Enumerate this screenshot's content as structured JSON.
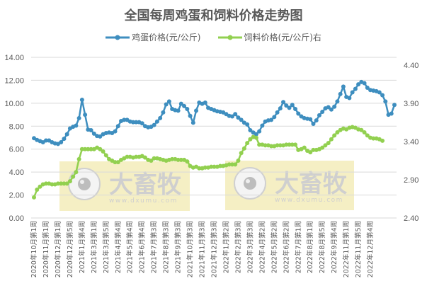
{
  "chart_data": {
    "type": "line",
    "title": "全国每周鸡蛋和饲料价格走势图",
    "xlabel": "",
    "ylabel": "",
    "legend_position": "top",
    "grid": true,
    "left_axis": {
      "ylim": [
        0,
        14
      ],
      "ticks": [
        "0.00",
        "2.00",
        "4.00",
        "6.00",
        "8.00",
        "10.00",
        "12.00",
        "14.00"
      ]
    },
    "right_axis": {
      "ylim": [
        2.4,
        4.4
      ],
      "ticks": [
        "2.40",
        "2.90",
        "3.40",
        "3.90",
        "4.40"
      ]
    },
    "x_tick_labels": [
      "2020年10月第1周",
      "2020年11月第1周",
      "2020年12月第1周",
      "2020年12月第5周",
      "2021年1月第4周",
      "2021年3月第1周",
      "2021年3月第5周",
      "2021年4月第4周",
      "2021年5月第4周",
      "2021年6月第4周",
      "2021年7月第3周",
      "2021年8月第3周",
      "2021年9月第3周",
      "2021年10月第3周",
      "2021年11月第3周",
      "2021年12月第3周",
      "2022年1月第2周",
      "2022年2月第3周",
      "2022年3月第3周",
      "2022年4月第2周",
      "2022年5月第2周",
      "2022年6月第2周",
      "2022年7月第1周",
      "2022年8月第1周",
      "2022年8月第5周",
      "2022年9月第4周",
      "2022年11月第1周",
      "2022年11月第5周",
      "2022年12月第4周"
    ],
    "series": [
      {
        "name": "鸡蛋价格(元/公斤)",
        "axis": "left",
        "color": "#3e8ebf",
        "values": [
          6.95,
          6.8,
          6.7,
          6.6,
          6.75,
          6.75,
          6.6,
          6.5,
          6.45,
          6.6,
          6.9,
          7.3,
          7.8,
          7.95,
          8.05,
          8.7,
          10.3,
          9.0,
          7.7,
          7.65,
          7.35,
          7.15,
          7.1,
          7.3,
          7.4,
          7.45,
          7.4,
          7.55,
          8.0,
          8.45,
          8.55,
          8.55,
          8.4,
          8.35,
          8.35,
          8.35,
          8.25,
          8.0,
          7.9,
          7.95,
          8.1,
          8.4,
          8.7,
          9.2,
          9.9,
          10.15,
          9.5,
          9.4,
          9.35,
          9.95,
          9.75,
          9.5,
          8.9,
          8.3,
          9.35,
          10.05,
          9.95,
          10.05,
          9.6,
          9.5,
          9.4,
          9.3,
          9.25,
          9.2,
          9.05,
          8.9,
          8.85,
          9.05,
          8.75,
          8.55,
          8.3,
          8.15,
          7.65,
          7.45,
          7.3,
          7.55,
          8.05,
          8.4,
          8.5,
          8.55,
          8.8,
          9.2,
          9.55,
          10.1,
          9.8,
          9.6,
          9.85,
          9.5,
          9.1,
          8.85,
          8.7,
          8.65,
          8.6,
          8.2,
          8.5,
          8.95,
          9.25,
          9.55,
          9.65,
          9.45,
          9.7,
          10.15,
          10.8,
          11.45,
          10.55,
          10.45,
          10.95,
          11.25,
          11.65,
          11.85,
          11.75,
          11.35,
          11.15,
          11.1,
          11.05,
          10.95,
          10.7,
          10.15,
          9.0,
          9.1,
          9.85
        ]
      },
      {
        "name": "饲料价格(元/公斤)右",
        "axis": "right",
        "color": "#92d050",
        "values": [
          2.67,
          2.77,
          2.81,
          2.84,
          2.85,
          2.85,
          2.84,
          2.84,
          2.85,
          2.85,
          2.85,
          2.85,
          2.88,
          2.94,
          3.0,
          3.17,
          3.3,
          3.3,
          3.3,
          3.3,
          3.3,
          3.32,
          3.3,
          3.27,
          3.22,
          3.17,
          3.15,
          3.13,
          3.13,
          3.16,
          3.18,
          3.2,
          3.2,
          3.19,
          3.2,
          3.2,
          3.21,
          3.19,
          3.16,
          3.15,
          3.18,
          3.18,
          3.17,
          3.16,
          3.15,
          3.16,
          3.17,
          3.17,
          3.16,
          3.16,
          3.16,
          3.14,
          3.08,
          3.06,
          3.07,
          3.05,
          3.05,
          3.06,
          3.06,
          3.07,
          3.07,
          3.07,
          3.08,
          3.08,
          3.09,
          3.1,
          3.1,
          3.1,
          3.15,
          3.25,
          3.31,
          3.38,
          3.43,
          3.46,
          3.45,
          3.36,
          3.36,
          3.35,
          3.35,
          3.34,
          3.34,
          3.35,
          3.35,
          3.35,
          3.36,
          3.36,
          3.36,
          3.36,
          3.29,
          3.3,
          3.32,
          3.28,
          3.26,
          3.29,
          3.29,
          3.3,
          3.32,
          3.35,
          3.38,
          3.43,
          3.48,
          3.52,
          3.55,
          3.57,
          3.56,
          3.58,
          3.59,
          3.58,
          3.56,
          3.55,
          3.52,
          3.48,
          3.45,
          3.44,
          3.44,
          3.43,
          3.41
        ]
      }
    ]
  },
  "watermarks": [
    {
      "brand": "大畜牧",
      "url": "www.dxumu.com"
    },
    {
      "brand": "大畜牧",
      "url": "www.dxumu.com"
    }
  ]
}
